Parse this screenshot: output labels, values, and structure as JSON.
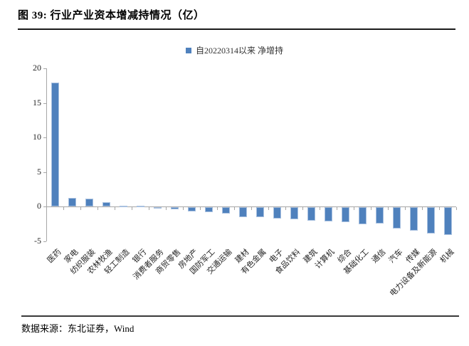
{
  "title": "图 39: 行业产业资本增减持情况（亿）",
  "legend": {
    "label": "自20220314以来 净增持",
    "marker_color": "#4f81bd"
  },
  "footer": {
    "source": "数据来源：东北证券，Wind"
  },
  "chart_data": {
    "type": "bar",
    "title": "行业产业资本增减持情况（亿）",
    "legend_entries": [
      "自20220314以来 净增持"
    ],
    "categories": [
      "医药",
      "家电",
      "纺织服装",
      "农林牧渔",
      "轻工制造",
      "银行",
      "消费者服务",
      "商贸零售",
      "房地产",
      "国防军工",
      "交通运输",
      "建材",
      "有色金属",
      "电子",
      "食品饮料",
      "建筑",
      "计算机",
      "综合",
      "基础化工",
      "通信",
      "汽车",
      "传媒",
      "电力设备及新能源",
      "机械"
    ],
    "values": [
      17.9,
      1.2,
      1.1,
      0.6,
      0.1,
      0.0,
      -0.1,
      -0.3,
      -0.6,
      -0.7,
      -0.9,
      -1.4,
      -1.4,
      -1.7,
      -1.8,
      -2.0,
      -2.1,
      -2.2,
      -2.5,
      -2.4,
      -3.1,
      -3.4,
      -3.8,
      -4.0
    ],
    "xlabel": "",
    "ylabel": "",
    "ylim": [
      -5,
      20
    ],
    "yticks": [
      20,
      15,
      10,
      5,
      0,
      -5
    ],
    "grid": false,
    "legend_position": "top-center",
    "bar_color": "#4f81bd"
  }
}
